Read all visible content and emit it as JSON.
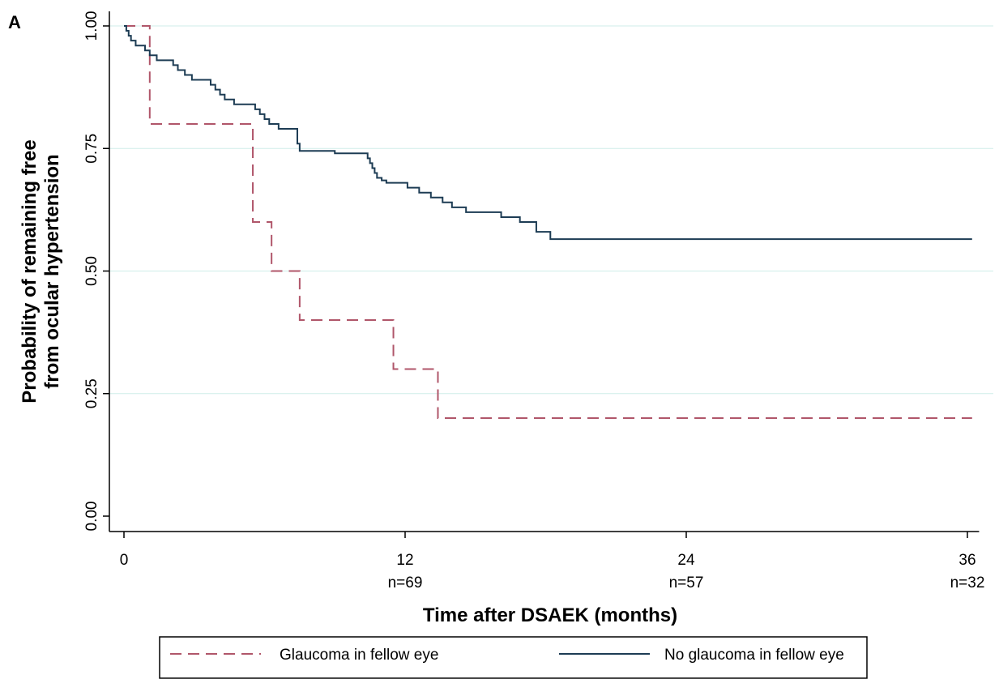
{
  "panel_label": "A",
  "chart_data": {
    "type": "line",
    "step": true,
    "xlabel": "Time after DSAEK (months)",
    "ylabel_lines": [
      "Probability of remaining free",
      "from ocular hypertension"
    ],
    "xlim": [
      0,
      36.5
    ],
    "ylim": [
      0,
      1
    ],
    "x_ticks": [
      {
        "value": 0,
        "label": "0",
        "risk": ""
      },
      {
        "value": 12,
        "label": "12",
        "risk": "n=69"
      },
      {
        "value": 24,
        "label": "24",
        "risk": "n=57"
      },
      {
        "value": 36,
        "label": "36",
        "risk": "n=32"
      }
    ],
    "y_ticks": [
      {
        "value": 0,
        "label": "0.00"
      },
      {
        "value": 0.25,
        "label": "0.25"
      },
      {
        "value": 0.5,
        "label": "0.50"
      },
      {
        "value": 0.75,
        "label": "0.75"
      },
      {
        "value": 1,
        "label": "1.00"
      }
    ],
    "grid": "horizontal",
    "legend_position": "bottom",
    "series": [
      {
        "name": "Glaucoma in fellow eye",
        "color": "#b0566a",
        "dash": true,
        "x": [
          0,
          1.1,
          5.5,
          6.3,
          7.5,
          11.5,
          13.4,
          36.2
        ],
        "y": [
          1.0,
          0.8,
          0.6,
          0.5,
          0.4,
          0.3,
          0.2,
          0.2
        ]
      },
      {
        "name": "No glaucoma in fellow eye",
        "color": "#1d3c54",
        "dash": false,
        "x": [
          0,
          0.1,
          0.2,
          0.3,
          0.5,
          0.9,
          1.1,
          1.4,
          2.1,
          2.3,
          2.6,
          2.9,
          3.7,
          3.9,
          4.1,
          4.3,
          4.7,
          5.6,
          5.8,
          6.0,
          6.2,
          6.6,
          7.4,
          7.5,
          9.0,
          10.4,
          10.5,
          10.6,
          10.7,
          10.8,
          11.0,
          11.2,
          11.3,
          11.5,
          12.1,
          12.6,
          13.1,
          13.6,
          14.0,
          14.6,
          16.1,
          16.9,
          17.6,
          18.2,
          36.2
        ],
        "y": [
          1.0,
          0.99,
          0.98,
          0.97,
          0.96,
          0.95,
          0.94,
          0.93,
          0.92,
          0.91,
          0.9,
          0.89,
          0.88,
          0.87,
          0.86,
          0.85,
          0.84,
          0.83,
          0.82,
          0.81,
          0.8,
          0.79,
          0.76,
          0.745,
          0.74,
          0.73,
          0.72,
          0.71,
          0.7,
          0.69,
          0.685,
          0.68,
          0.68,
          0.68,
          0.67,
          0.66,
          0.65,
          0.64,
          0.63,
          0.62,
          0.61,
          0.6,
          0.58,
          0.565,
          0.565
        ]
      }
    ]
  }
}
